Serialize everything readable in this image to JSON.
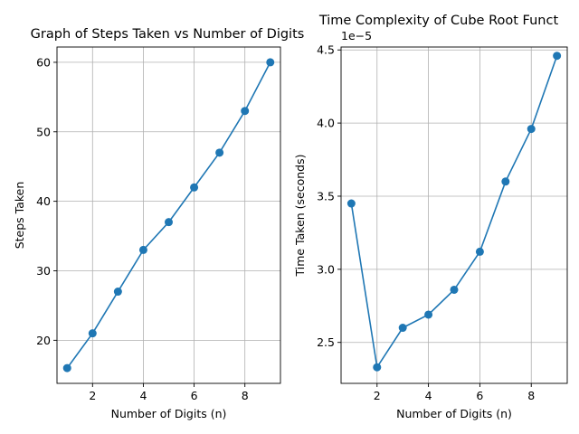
{
  "chart_data": [
    {
      "type": "line",
      "title": "Graph of Steps Taken vs Number of Digits",
      "xlabel": "Number of Digits (n)",
      "ylabel": "Steps Taken",
      "xlim": [
        0.6,
        9.4
      ],
      "ylim": [
        13.8,
        62.2
      ],
      "xticks": [
        2,
        4,
        6,
        8
      ],
      "yticks": [
        20,
        30,
        40,
        50,
        60
      ],
      "grid": true,
      "color": "#1f77b4",
      "series": [
        {
          "x": [
            1,
            2,
            3,
            4,
            5,
            6,
            7,
            8,
            9
          ],
          "y": [
            16,
            21,
            27,
            33,
            37,
            42,
            47,
            53,
            60
          ]
        }
      ]
    },
    {
      "type": "line",
      "title": "Time Complexity of Cube Root Funct",
      "xlabel": "Number of Digits (n)",
      "ylabel": "Time Taken (seconds)",
      "offset_text": "1e−5",
      "xlim": [
        0.6,
        9.4
      ],
      "ylim": [
        2.22,
        4.52
      ],
      "xticks": [
        2,
        4,
        6,
        8
      ],
      "yticks": [
        2.5,
        3.0,
        3.5,
        4.0,
        4.5
      ],
      "ytick_labels": [
        "2.5",
        "3.0",
        "3.5",
        "4.0",
        "4.5"
      ],
      "grid": true,
      "color": "#1f77b4",
      "series": [
        {
          "x": [
            1,
            2,
            3,
            4,
            5,
            6,
            7,
            8,
            9
          ],
          "y": [
            3.45,
            2.33,
            2.6,
            2.69,
            2.86,
            3.12,
            3.6,
            3.96,
            4.46
          ]
        }
      ]
    }
  ]
}
